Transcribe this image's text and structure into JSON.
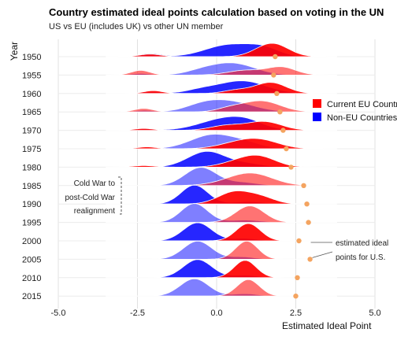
{
  "chart_data": {
    "type": "ridgeline",
    "title": "Country estimated ideal points calculation based on voting in the UN",
    "subtitle": "US vs EU (includes UK) vs other UN member",
    "xlabel": "Estimated Ideal Point",
    "ylabel": "Year",
    "xlim": [
      -5.0,
      5.0
    ],
    "x_ticks": [
      "-5.0",
      "-2.5",
      "0.0",
      "2.5",
      "5.0"
    ],
    "x_tick_values": [
      -5.0,
      -2.5,
      0.0,
      2.5,
      5.0
    ],
    "years": [
      "1950",
      "1955",
      "1960",
      "1965",
      "1970",
      "1975",
      "1980",
      "1985",
      "1990",
      "1995",
      "2000",
      "2005",
      "2010",
      "2015"
    ],
    "grid": true,
    "legend_position": "right",
    "series": [
      {
        "name": "Current EU Countries",
        "color": "#ff0000"
      },
      {
        "name": "Non-EU Countries",
        "color": "#0000ff"
      }
    ],
    "us_point_color": "#f4a460",
    "us_ideal_points": [
      1.85,
      1.8,
      1.9,
      2.0,
      2.1,
      2.2,
      2.35,
      2.75,
      2.85,
      2.9,
      2.6,
      2.95,
      2.55,
      2.5
    ],
    "annotations": {
      "cold_war": [
        "Cold War to",
        "post-Cold War",
        "realignment"
      ],
      "us": [
        "estimated ideal",
        "points for U.S."
      ]
    }
  }
}
